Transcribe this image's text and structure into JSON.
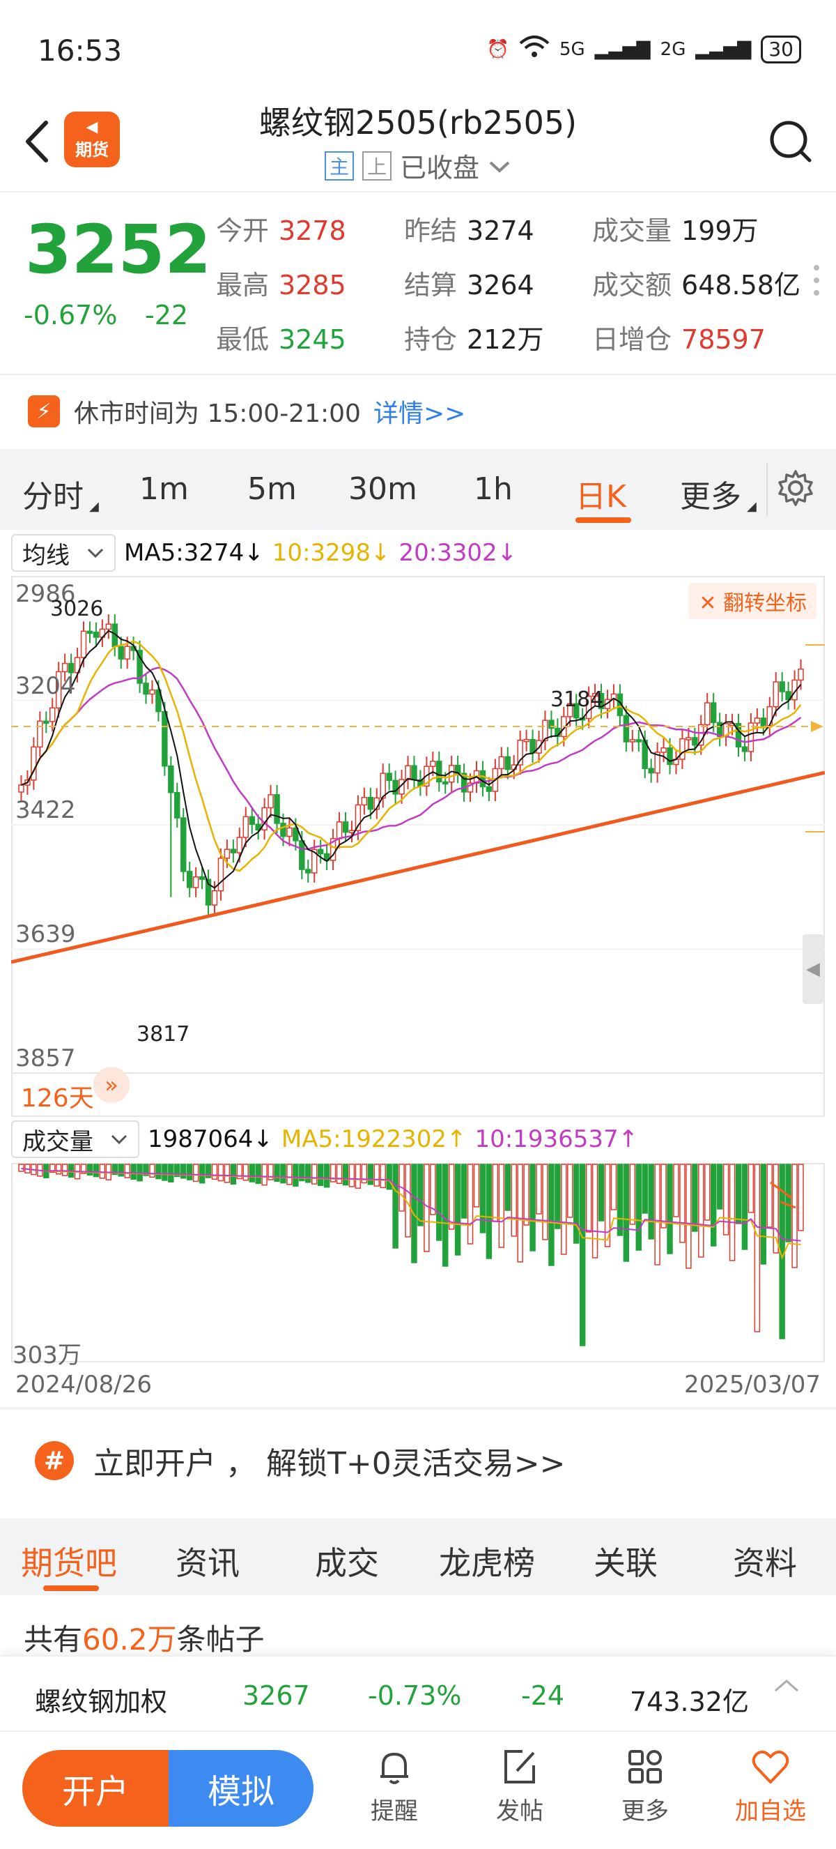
{
  "status_bar": {
    "time": "16:53",
    "network_1": "5G",
    "network_2": "2G",
    "battery": "30"
  },
  "header": {
    "title": "螺纹钢2505(rb2505)",
    "logo_text": "期货",
    "tag_main": "主",
    "tag_up": "上",
    "market_status": "已收盘"
  },
  "quote": {
    "price": "3252",
    "change_pct": "-0.67%",
    "change": "-22",
    "rows": [
      [
        {
          "label": "今开",
          "value": "3278",
          "color": "red"
        },
        {
          "label": "昨结",
          "value": "3274",
          "color": "dark"
        },
        {
          "label": "成交量",
          "value": "199万",
          "color": "dark"
        }
      ],
      [
        {
          "label": "最高",
          "value": "3285",
          "color": "red"
        },
        {
          "label": "结算",
          "value": "3264",
          "color": "dark"
        },
        {
          "label": "成交额",
          "value": "648.58亿",
          "color": "dark"
        }
      ],
      [
        {
          "label": "最低",
          "value": "3245",
          "color": "green"
        },
        {
          "label": "持仓",
          "value": "212万",
          "color": "dark"
        },
        {
          "label": "日增仓",
          "value": "78597",
          "color": "red"
        }
      ]
    ]
  },
  "notice": {
    "text": "休市时间为 15:00-21:00",
    "link": "详情>>"
  },
  "period_tabs": [
    "分时",
    "1m",
    "5m",
    "30m",
    "1h",
    "日K",
    "更多"
  ],
  "active_period": "日K",
  "ma_legend": {
    "selector": "均线",
    "ma5": "MA5:3274↓",
    "ma10": "10:3298↓",
    "ma20": "20:3302↓"
  },
  "kline": {
    "y_labels": [
      "2986",
      "3204",
      "3422",
      "3639",
      "3857"
    ],
    "high_marker": "3026",
    "low_marker": "3817",
    "peak_marker": "3184",
    "flip_button": "翻转坐标",
    "days": "126天"
  },
  "volume": {
    "selector": "成交量",
    "value": "1987064↓",
    "ma5": "MA5:1922302↑",
    "ma10": "10:1936537↑",
    "scale": "303万"
  },
  "dates": {
    "start": "2024/08/26",
    "end": "2025/03/07"
  },
  "promo": {
    "icon": "#",
    "text": "立即开户 ，  解锁T+0灵活交易>>"
  },
  "section_tabs": [
    "期货吧",
    "资讯",
    "成交",
    "龙虎榜",
    "关联",
    "资料"
  ],
  "posts": {
    "prefix": "共有",
    "count": "60.2万",
    "suffix": "条帖子"
  },
  "index_bar": {
    "name": "螺纹钢加权",
    "price": "3267",
    "change_pct": "-0.73%",
    "change": "-24",
    "amount": "743.32亿"
  },
  "bottom_nav": {
    "open_account": "开户",
    "simulate": "模拟",
    "remind": "提醒",
    "post": "发帖",
    "more": "更多",
    "add_fav": "加自选"
  },
  "colors": {
    "up": "#e03a2f",
    "down": "#22a23a",
    "accent": "#f5621c",
    "ma5": "#111111",
    "ma10": "#e6b400",
    "ma20": "#c23bc4"
  }
}
